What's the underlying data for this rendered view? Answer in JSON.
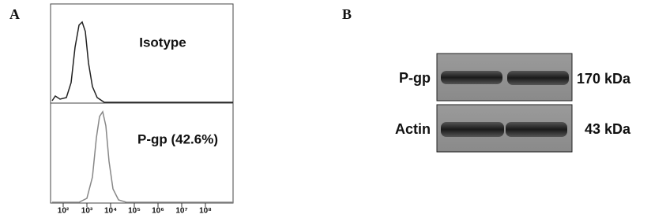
{
  "panels": [
    {
      "label": "A",
      "annotations": [
        "Isotype",
        "P-gp (42.6%)"
      ],
      "x_tick_labels": [
        "10²",
        "10³",
        "10⁴",
        "10⁵",
        "10⁶",
        "10⁷",
        "10⁸"
      ]
    },
    {
      "label": "B",
      "bands": [
        {
          "name": "P-gp",
          "size": "170 kDa"
        },
        {
          "name": "Actin",
          "size": "43 kDa"
        }
      ]
    }
  ]
}
